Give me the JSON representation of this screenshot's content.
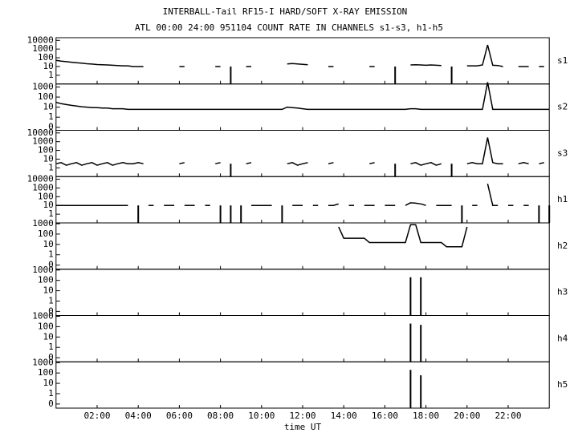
{
  "chart_data": {
    "type": "line",
    "title": "INTERBALL-Tail RF15-I HARD/SOFT X-RAY EMISSION",
    "subtitle": "ATL 00:00 24:00 951104  COUNT RATE IN CHANNELS s1-s3, h1-h5",
    "xlabel": "time UT",
    "xlim": [
      0,
      24
    ],
    "xticks": [
      {
        "value": 2,
        "label": "02:00"
      },
      {
        "value": 4,
        "label": "04:00"
      },
      {
        "value": 6,
        "label": "06:00"
      },
      {
        "value": 8,
        "label": "08:00"
      },
      {
        "value": 10,
        "label": "10:00"
      },
      {
        "value": 12,
        "label": "12:00"
      },
      {
        "value": 14,
        "label": "14:00"
      },
      {
        "value": 16,
        "label": "16:00"
      },
      {
        "value": 18,
        "label": "18:00"
      },
      {
        "value": 20,
        "label": "20:00"
      },
      {
        "value": 22,
        "label": "22:00"
      }
    ],
    "log_scale": true,
    "x": [
      0,
      0.25,
      0.5,
      0.75,
      1,
      1.25,
      1.5,
      1.75,
      2,
      2.25,
      2.5,
      2.75,
      3,
      3.25,
      3.5,
      3.75,
      4,
      4.25,
      4.5,
      4.75,
      5,
      5.25,
      5.5,
      5.75,
      6,
      6.25,
      6.5,
      6.75,
      7,
      7.25,
      7.5,
      7.75,
      8,
      8.25,
      8.5,
      8.75,
      9,
      9.25,
      9.5,
      9.75,
      10,
      10.25,
      10.5,
      10.75,
      11,
      11.25,
      11.5,
      11.75,
      12,
      12.25,
      12.5,
      12.75,
      13,
      13.25,
      13.5,
      13.75,
      14,
      14.25,
      14.5,
      14.75,
      15,
      15.25,
      15.5,
      15.75,
      16,
      16.25,
      16.5,
      16.75,
      17,
      17.25,
      17.5,
      17.75,
      18,
      18.25,
      18.5,
      18.75,
      19,
      19.25,
      19.5,
      19.75,
      20,
      20.25,
      20.5,
      20.75,
      21,
      21.25,
      21.5,
      21.75,
      22,
      22.25,
      22.5,
      22.75,
      23,
      23.25,
      23.5,
      23.75,
      24
    ],
    "series": [
      {
        "name": "s1",
        "color": "#000000",
        "ylim": [
          0.1,
          20000
        ],
        "yticks": [
          10000,
          1000,
          100,
          10,
          1
        ],
        "values": [
          50,
          42,
          36,
          31,
          27,
          24,
          21,
          19,
          17,
          16,
          15,
          14,
          13,
          12,
          12,
          10,
          10,
          10,
          null,
          null,
          null,
          null,
          null,
          null,
          10,
          10,
          null,
          null,
          null,
          null,
          null,
          10,
          10,
          null,
          10,
          null,
          null,
          10,
          10,
          null,
          null,
          null,
          null,
          null,
          null,
          20,
          22,
          20,
          18,
          16,
          null,
          null,
          null,
          10,
          10,
          null,
          null,
          null,
          null,
          null,
          null,
          10,
          10,
          null,
          null,
          null,
          10,
          null,
          null,
          15,
          16,
          15,
          14,
          15,
          14,
          13,
          null,
          10,
          null,
          null,
          12,
          12,
          12,
          15,
          3000,
          14,
          13,
          10,
          null,
          null,
          10,
          10,
          10,
          null,
          10,
          10,
          null
        ]
      },
      {
        "name": "s2",
        "color": "#000000",
        "ylim": [
          0.05,
          2000
        ],
        "yticks": [
          1000,
          100,
          10,
          1,
          {
            "value": 0.1,
            "label": "0"
          }
        ],
        "values": [
          30,
          22,
          18,
          15,
          13,
          11,
          10,
          9,
          9,
          8,
          8,
          7,
          7,
          7,
          6,
          6,
          6,
          6,
          6,
          6,
          6,
          6,
          6,
          6,
          6,
          6,
          6,
          6,
          6,
          6,
          6,
          6,
          6,
          6,
          6,
          6,
          6,
          6,
          6,
          6,
          6,
          6,
          6,
          6,
          6,
          10,
          9,
          8,
          7,
          6,
          6,
          6,
          6,
          6,
          6,
          6,
          6,
          6,
          6,
          6,
          6,
          6,
          6,
          6,
          6,
          6,
          6,
          6,
          6,
          7,
          7,
          6,
          6,
          6,
          6,
          6,
          6,
          6,
          6,
          6,
          6,
          6,
          6,
          6,
          3000,
          6,
          6,
          6,
          6,
          6,
          6,
          6,
          6,
          6,
          6,
          6,
          6
        ]
      },
      {
        "name": "s3",
        "color": "#000000",
        "ylim": [
          0.1,
          20000
        ],
        "yticks": [
          10000,
          1000,
          100,
          10,
          1
        ],
        "values": [
          3,
          4,
          2,
          3,
          4,
          2,
          3,
          4,
          2,
          3,
          4,
          2,
          3,
          4,
          3,
          3,
          4,
          3,
          null,
          null,
          null,
          null,
          null,
          null,
          3,
          4,
          null,
          null,
          null,
          null,
          null,
          3,
          4,
          null,
          3,
          null,
          null,
          3,
          4,
          null,
          null,
          null,
          null,
          null,
          null,
          3,
          4,
          2,
          3,
          4,
          null,
          null,
          null,
          3,
          4,
          null,
          null,
          null,
          null,
          null,
          null,
          3,
          4,
          null,
          null,
          null,
          3,
          null,
          null,
          3,
          4,
          2,
          3,
          4,
          2,
          3,
          null,
          3,
          null,
          null,
          3,
          4,
          3,
          3,
          3000,
          4,
          3,
          3,
          null,
          null,
          3,
          4,
          3,
          null,
          3,
          4,
          null
        ]
      },
      {
        "name": "h1",
        "color": "#000000",
        "ylim": [
          0.1,
          20000
        ],
        "yticks": [
          10000,
          1000,
          100,
          10,
          1
        ],
        "values": [
          10,
          10,
          10,
          10,
          10,
          10,
          10,
          10,
          10,
          10,
          10,
          10,
          10,
          10,
          10,
          null,
          10,
          null,
          10,
          10,
          null,
          10,
          10,
          10,
          null,
          10,
          10,
          10,
          null,
          10,
          10,
          null,
          10,
          null,
          10,
          null,
          10,
          null,
          10,
          10,
          10,
          10,
          10,
          null,
          10,
          null,
          10,
          10,
          10,
          null,
          10,
          10,
          null,
          10,
          10,
          15,
          null,
          10,
          10,
          null,
          10,
          10,
          10,
          null,
          10,
          10,
          10,
          null,
          10,
          20,
          18,
          15,
          10,
          null,
          10,
          10,
          10,
          10,
          null,
          10,
          null,
          10,
          10,
          null,
          3000,
          10,
          10,
          null,
          10,
          10,
          null,
          10,
          10,
          null,
          10,
          null,
          10
        ]
      },
      {
        "name": "h2",
        "color": "#000000",
        "ylim": [
          0.04,
          1200
        ],
        "yticks": [
          1000,
          100,
          10,
          1,
          {
            "value": 0.1,
            "label": "0"
          }
        ],
        "values": [
          null,
          null,
          null,
          null,
          null,
          null,
          null,
          null,
          null,
          null,
          null,
          null,
          null,
          null,
          null,
          null,
          null,
          null,
          null,
          null,
          null,
          null,
          null,
          null,
          null,
          null,
          null,
          null,
          null,
          null,
          null,
          null,
          null,
          null,
          null,
          null,
          null,
          null,
          null,
          null,
          null,
          null,
          null,
          null,
          null,
          null,
          null,
          null,
          null,
          null,
          null,
          null,
          null,
          null,
          null,
          500,
          40,
          40,
          40,
          40,
          40,
          15,
          15,
          15,
          15,
          15,
          15,
          15,
          15,
          800,
          800,
          15,
          15,
          15,
          15,
          15,
          6,
          6,
          6,
          6,
          500,
          null,
          null,
          null,
          null,
          null,
          null,
          null,
          null,
          null,
          null,
          null,
          null,
          null,
          null,
          null,
          null
        ]
      },
      {
        "name": "h3",
        "color": "#000000",
        "ylim": [
          0.04,
          1200
        ],
        "yticks": [
          1000,
          100,
          10,
          1,
          {
            "value": 0.1,
            "label": "0"
          }
        ],
        "values": [
          null,
          null,
          null,
          null,
          null,
          null,
          null,
          null,
          null,
          null,
          null,
          null,
          null,
          null,
          null,
          null,
          null,
          null,
          null,
          null,
          null,
          null,
          null,
          null,
          null,
          null,
          null,
          null,
          null,
          null,
          null,
          null,
          null,
          null,
          null,
          null,
          null,
          null,
          null,
          null,
          null,
          null,
          null,
          null,
          null,
          null,
          null,
          null,
          null,
          null,
          null,
          null,
          null,
          null,
          null,
          null,
          null,
          null,
          null,
          null,
          null,
          null,
          null,
          null,
          null,
          null,
          null,
          null,
          null,
          200,
          null,
          200,
          null,
          null,
          null,
          null,
          null,
          null,
          null,
          null,
          null,
          null,
          null,
          null,
          null,
          null,
          null,
          null,
          null,
          null,
          null,
          null,
          null,
          null,
          null,
          null,
          null
        ]
      },
      {
        "name": "h4",
        "color": "#000000",
        "ylim": [
          0.04,
          1200
        ],
        "yticks": [
          1000,
          100,
          10,
          1,
          {
            "value": 0.1,
            "label": "0"
          }
        ],
        "values": [
          null,
          null,
          null,
          null,
          null,
          null,
          null,
          null,
          null,
          null,
          null,
          null,
          null,
          null,
          null,
          null,
          null,
          null,
          null,
          null,
          null,
          null,
          null,
          null,
          null,
          null,
          null,
          null,
          null,
          null,
          null,
          null,
          null,
          null,
          null,
          null,
          null,
          null,
          null,
          null,
          null,
          null,
          null,
          null,
          null,
          null,
          null,
          null,
          null,
          null,
          null,
          null,
          null,
          null,
          null,
          null,
          null,
          null,
          null,
          null,
          null,
          null,
          null,
          null,
          null,
          null,
          null,
          null,
          null,
          200,
          null,
          150,
          null,
          null,
          null,
          null,
          null,
          null,
          null,
          null,
          null,
          null,
          null,
          null,
          null,
          null,
          null,
          null,
          null,
          null,
          null,
          null,
          null,
          null,
          null,
          null,
          null
        ]
      },
      {
        "name": "h5",
        "color": "#000000",
        "ylim": [
          0.04,
          1200
        ],
        "yticks": [
          1000,
          100,
          10,
          1,
          {
            "value": 0.1,
            "label": "0"
          }
        ],
        "values": [
          null,
          null,
          null,
          null,
          null,
          null,
          null,
          null,
          null,
          null,
          null,
          null,
          null,
          null,
          null,
          null,
          null,
          null,
          null,
          null,
          null,
          null,
          null,
          null,
          null,
          null,
          null,
          null,
          null,
          null,
          null,
          null,
          null,
          null,
          null,
          null,
          null,
          null,
          null,
          null,
          null,
          null,
          null,
          null,
          null,
          null,
          null,
          null,
          null,
          null,
          null,
          null,
          null,
          null,
          null,
          null,
          null,
          null,
          null,
          null,
          null,
          null,
          null,
          null,
          null,
          null,
          null,
          null,
          null,
          200,
          null,
          60,
          null,
          null,
          null,
          null,
          null,
          null,
          null,
          null,
          null,
          null,
          null,
          null,
          null,
          null,
          null,
          null,
          null,
          null,
          null,
          null,
          null,
          null,
          null,
          null,
          null
        ]
      }
    ]
  }
}
